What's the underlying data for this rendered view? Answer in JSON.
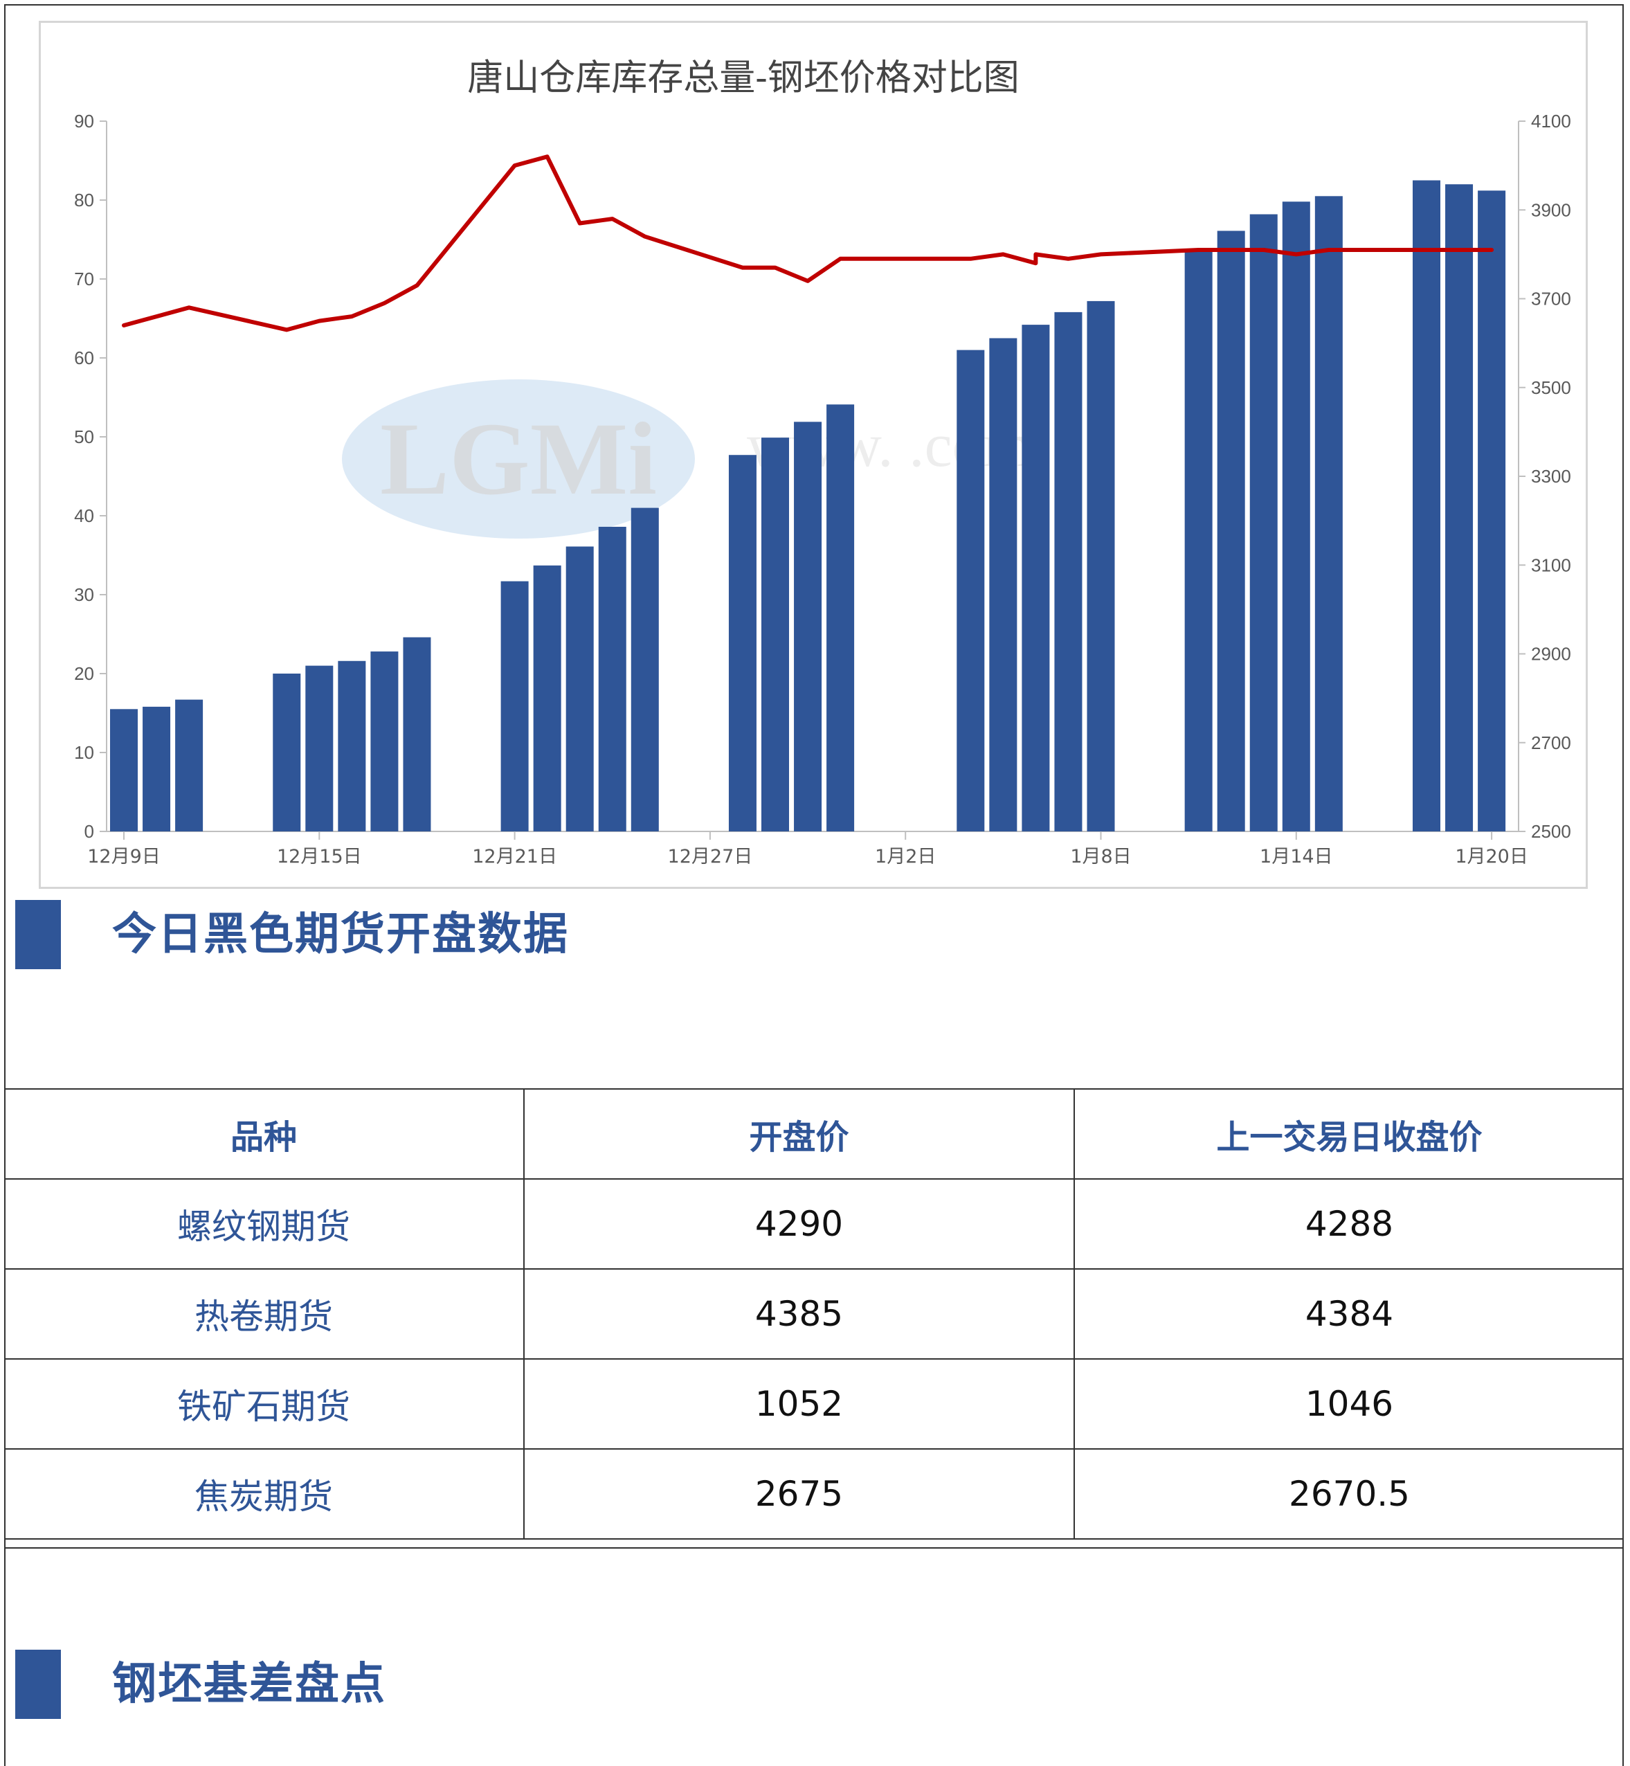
{
  "chart_data": {
    "type": "bar+line",
    "title": "唐山仓库库存总量-钢坯价格对比图",
    "xlabel": "",
    "ylabel_left": "",
    "ylabel_right": "",
    "ylim_left": [
      0,
      90
    ],
    "ylim_right": [
      2500,
      4100
    ],
    "yticks_left": [
      0,
      10,
      20,
      30,
      40,
      50,
      60,
      70,
      80,
      90
    ],
    "yticks_right": [
      2500,
      2700,
      2900,
      3100,
      3300,
      3500,
      3700,
      3900,
      4100
    ],
    "x_day_range": [
      0,
      43
    ],
    "xtick_labels": [
      {
        "day": 0,
        "label": "12月9日"
      },
      {
        "day": 6,
        "label": "12月15日"
      },
      {
        "day": 12,
        "label": "12月21日"
      },
      {
        "day": 18,
        "label": "12月27日"
      },
      {
        "day": 24,
        "label": "1月2日"
      },
      {
        "day": 30,
        "label": "1月8日"
      },
      {
        "day": 36,
        "label": "1月14日"
      },
      {
        "day": 42,
        "label": "1月20日"
      }
    ],
    "grid": false,
    "legend": "none",
    "colors": {
      "bars": "#2f5597",
      "line": "#c00000"
    },
    "bar_series": {
      "axis": "left",
      "points": [
        {
          "day": 0,
          "value": 15.5
        },
        {
          "day": 1,
          "value": 15.8
        },
        {
          "day": 2,
          "value": 16.7
        },
        {
          "day": 5,
          "value": 20.0
        },
        {
          "day": 6,
          "value": 21.0
        },
        {
          "day": 7,
          "value": 21.6
        },
        {
          "day": 8,
          "value": 22.8
        },
        {
          "day": 9,
          "value": 24.6
        },
        {
          "day": 12,
          "value": 31.7
        },
        {
          "day": 13,
          "value": 33.7
        },
        {
          "day": 14,
          "value": 36.1
        },
        {
          "day": 15,
          "value": 38.6
        },
        {
          "day": 16,
          "value": 41.0
        },
        {
          "day": 19,
          "value": 47.7
        },
        {
          "day": 20,
          "value": 49.9
        },
        {
          "day": 21,
          "value": 51.9
        },
        {
          "day": 22,
          "value": 54.1
        },
        {
          "day": 26,
          "value": 61.0
        },
        {
          "day": 27,
          "value": 62.5
        },
        {
          "day": 28,
          "value": 64.2
        },
        {
          "day": 29,
          "value": 65.8
        },
        {
          "day": 30,
          "value": 67.2
        },
        {
          "day": 33,
          "value": 73.7
        },
        {
          "day": 34,
          "value": 76.1
        },
        {
          "day": 35,
          "value": 78.2
        },
        {
          "day": 36,
          "value": 79.8
        },
        {
          "day": 37,
          "value": 80.5
        },
        {
          "day": 40,
          "value": 82.5
        },
        {
          "day": 41,
          "value": 82.0
        },
        {
          "day": 42,
          "value": 81.2
        }
      ]
    },
    "line_series": {
      "axis": "right",
      "points": [
        {
          "day": 0,
          "value": 3640
        },
        {
          "day": 2,
          "value": 3680
        },
        {
          "day": 5,
          "value": 3630
        },
        {
          "day": 6,
          "value": 3650
        },
        {
          "day": 7,
          "value": 3660
        },
        {
          "day": 8,
          "value": 3690
        },
        {
          "day": 9,
          "value": 3730
        },
        {
          "day": 12,
          "value": 4000
        },
        {
          "day": 13,
          "value": 4020
        },
        {
          "day": 14,
          "value": 3870
        },
        {
          "day": 15,
          "value": 3880
        },
        {
          "day": 16,
          "value": 3840
        },
        {
          "day": 19,
          "value": 3770
        },
        {
          "day": 20,
          "value": 3770
        },
        {
          "day": 21,
          "value": 3740
        },
        {
          "day": 22,
          "value": 3790
        },
        {
          "day": 26,
          "value": 3790
        },
        {
          "day": 27,
          "value": 3800
        },
        {
          "day": 28,
          "value": 3780
        },
        {
          "day": 28,
          "value": 3800
        },
        {
          "day": 29,
          "value": 3790
        },
        {
          "day": 30,
          "value": 3800
        },
        {
          "day": 33,
          "value": 3810
        },
        {
          "day": 35,
          "value": 3810
        },
        {
          "day": 36,
          "value": 3800
        },
        {
          "day": 37,
          "value": 3810
        },
        {
          "day": 42,
          "value": 3810
        }
      ]
    }
  },
  "sections": {
    "opening": {
      "title": "今日黑色期货开盘数据"
    },
    "basis": {
      "title": "钢坯基差盘点"
    }
  },
  "futures_table": {
    "headers": [
      "品种",
      "开盘价",
      "上一交易日收盘价"
    ],
    "rows": [
      [
        "螺纹钢期货",
        "4290",
        "4288"
      ],
      [
        "热卷期货",
        "4385",
        "4384"
      ],
      [
        "铁矿石期货",
        "1052",
        "1046"
      ],
      [
        "焦炭期货",
        "2675",
        "2670.5"
      ]
    ]
  }
}
